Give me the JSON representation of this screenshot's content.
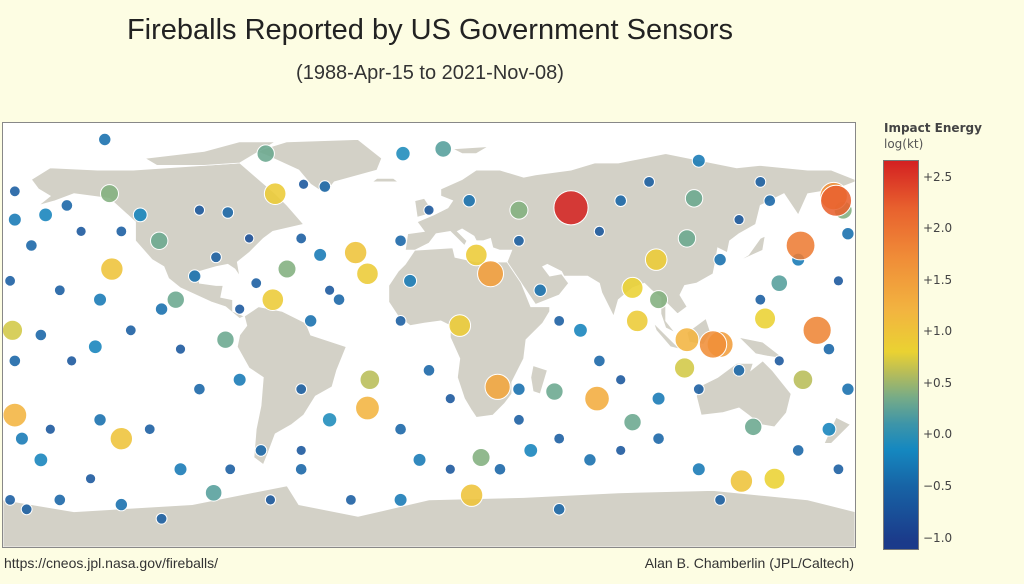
{
  "title": "Fireballs Reported by US Government Sensors",
  "subtitle": "(1988-Apr-15 to 2021-Nov-08)",
  "footer": {
    "source": "https://cneos.jpl.nasa.gov/fireballs/",
    "credit": "Alan B. Chamberlin (JPL/Caltech)"
  },
  "colors": {
    "background": "#fdfde3",
    "land": "#d3d1c7",
    "ocean": "#ffffff"
  },
  "chart_data": {
    "type": "scatter",
    "projection": "equirectangular",
    "x": "longitude",
    "y": "latitude",
    "colorbar": {
      "title": "Impact Energy",
      "unit": "log(kt)",
      "range": [
        -1.12,
        2.66
      ],
      "ticks": [
        {
          "v": 2.5,
          "label": "+2.5"
        },
        {
          "v": 2.0,
          "label": "+2.0"
        },
        {
          "v": 1.5,
          "label": "+1.5"
        },
        {
          "v": 1.0,
          "label": "+1.0"
        },
        {
          "v": 0.5,
          "label": "+0.5"
        },
        {
          "v": 0.0,
          "label": "+0.0"
        },
        {
          "v": -0.5,
          "label": "−0.5"
        },
        {
          "v": -1.0,
          "label": "−1.0"
        }
      ],
      "colorscale": [
        [
          -1.05,
          "#1b3a8a"
        ],
        [
          -0.5,
          "#1764a6"
        ],
        [
          -0.15,
          "#1588c0"
        ],
        [
          0.1,
          "#3e95a8"
        ],
        [
          0.35,
          "#75ab88"
        ],
        [
          0.6,
          "#b8bd58"
        ],
        [
          0.8,
          "#ead232"
        ],
        [
          1.2,
          "#f2b440"
        ],
        [
          1.7,
          "#f08e38"
        ],
        [
          2.2,
          "#e8612e"
        ],
        [
          2.65,
          "#d42222"
        ]
      ]
    },
    "points": [
      [
        60,
        54,
        2.64
      ],
      [
        172,
        57,
        2.2
      ],
      [
        171,
        59,
        1.7
      ],
      [
        157,
        38,
        1.9
      ],
      [
        164,
        2,
        1.8
      ],
      [
        120,
        -4,
        1.7
      ],
      [
        123,
        -4,
        1.5
      ],
      [
        109,
        -2,
        1.2
      ],
      [
        26,
        26,
        1.5
      ],
      [
        29,
        -22,
        1.4
      ],
      [
        71,
        -27,
        1.3
      ],
      [
        -26,
        -31,
        1.2
      ],
      [
        -175,
        -34,
        1.2
      ],
      [
        -130,
        -44,
        1.0
      ],
      [
        -134,
        28,
        1.0
      ],
      [
        18,
        -68,
        1.0
      ],
      [
        -65,
        60,
        0.9
      ],
      [
        -31,
        35,
        1.0
      ],
      [
        -26,
        26,
        0.9
      ],
      [
        -66,
        15,
        0.9
      ],
      [
        20,
        34,
        0.9
      ],
      [
        96,
        32,
        0.9
      ],
      [
        86,
        20,
        0.8
      ],
      [
        88,
        6,
        0.9
      ],
      [
        13,
        4,
        0.9
      ],
      [
        132,
        -62,
        1.0
      ],
      [
        146,
        -61,
        0.8
      ],
      [
        142,
        7,
        0.8
      ],
      [
        108,
        -14,
        0.7
      ],
      [
        158,
        -19,
        0.6
      ],
      [
        -25,
        -19,
        0.6
      ],
      [
        -176,
        2,
        0.7
      ],
      [
        38,
        53,
        0.4
      ],
      [
        -135,
        60,
        0.4
      ],
      [
        -69,
        77,
        0.3
      ],
      [
        6,
        79,
        0.2
      ],
      [
        -114,
        40,
        0.3
      ],
      [
        -60,
        28,
        0.4
      ],
      [
        -107,
        15,
        0.3
      ],
      [
        112,
        58,
        0.3
      ],
      [
        109,
        41,
        0.3
      ],
      [
        97,
        15,
        0.4
      ],
      [
        148,
        22,
        0.2
      ],
      [
        53,
        -24,
        0.3
      ],
      [
        86,
        -37,
        0.3
      ],
      [
        137,
        -39,
        0.3
      ],
      [
        -86,
        -2,
        0.3
      ],
      [
        22,
        -52,
        0.4
      ],
      [
        -91,
        -67,
        0.2
      ],
      [
        175,
        53,
        0.4
      ],
      [
        -137,
        83,
        -0.4
      ],
      [
        -11,
        77,
        -0.1
      ],
      [
        -44,
        63,
        -0.5
      ],
      [
        -53,
        64,
        -0.7
      ],
      [
        -175,
        61,
        -0.6
      ],
      [
        -162,
        51,
        -0.2
      ],
      [
        -153,
        55,
        -0.5
      ],
      [
        -175,
        49,
        -0.3
      ],
      [
        -147,
        44,
        -0.7
      ],
      [
        -168,
        38,
        -0.5
      ],
      [
        -130,
        44,
        -0.6
      ],
      [
        -122,
        51,
        -0.2
      ],
      [
        -97,
        53,
        -0.7
      ],
      [
        -85,
        52,
        -0.5
      ],
      [
        -90,
        33,
        -0.6
      ],
      [
        -99,
        25,
        -0.4
      ],
      [
        -76,
        41,
        -0.8
      ],
      [
        -54,
        41,
        -0.6
      ],
      [
        -46,
        34,
        -0.3
      ],
      [
        -42,
        19,
        -0.7
      ],
      [
        -38,
        15,
        -0.5
      ],
      [
        -73,
        22,
        -0.6
      ],
      [
        -50,
        6,
        -0.4
      ],
      [
        -80,
        11,
        -0.7
      ],
      [
        -139,
        15,
        -0.3
      ],
      [
        -156,
        19,
        -0.6
      ],
      [
        -164,
        0,
        -0.5
      ],
      [
        -151,
        -11,
        -0.7
      ],
      [
        -141,
        -5,
        -0.2
      ],
      [
        -126,
        2,
        -0.6
      ],
      [
        -113,
        11,
        -0.4
      ],
      [
        -105,
        -6,
        -0.7
      ],
      [
        -97,
        -23,
        -0.5
      ],
      [
        -80,
        -19,
        -0.3
      ],
      [
        -54,
        -23,
        -0.6
      ],
      [
        -42,
        -36,
        -0.1
      ],
      [
        -54,
        -49,
        -0.7
      ],
      [
        -71,
        -49,
        -0.5
      ],
      [
        -84,
        -57,
        -0.6
      ],
      [
        -105,
        -57,
        -0.3
      ],
      [
        -118,
        -40,
        -0.6
      ],
      [
        -139,
        -36,
        -0.4
      ],
      [
        -160,
        -40,
        -0.7
      ],
      [
        -164,
        -53,
        -0.2
      ],
      [
        -170,
        -74,
        -0.6
      ],
      [
        -156,
        -70,
        -0.5
      ],
      [
        -143,
        -61,
        -0.7
      ],
      [
        -130,
        -72,
        -0.4
      ],
      [
        -113,
        -78,
        -0.6
      ],
      [
        -12,
        -40,
        -0.5
      ],
      [
        -4,
        -53,
        -0.3
      ],
      [
        9,
        -57,
        -0.7
      ],
      [
        30,
        -57,
        -0.5
      ],
      [
        43,
        -49,
        -0.2
      ],
      [
        55,
        -44,
        -0.6
      ],
      [
        68,
        -53,
        -0.4
      ],
      [
        81,
        -49,
        -0.7
      ],
      [
        97,
        -44,
        -0.5
      ],
      [
        114,
        -57,
        -0.3
      ],
      [
        123,
        -70,
        -0.6
      ],
      [
        156,
        -49,
        -0.5
      ],
      [
        169,
        -40,
        -0.2
      ],
      [
        173,
        -57,
        -0.6
      ],
      [
        177,
        -23,
        -0.4
      ],
      [
        148,
        -11,
        -0.7
      ],
      [
        131,
        -15,
        -0.5
      ],
      [
        114,
        -23,
        -0.6
      ],
      [
        97,
        -27,
        -0.3
      ],
      [
        81,
        -19,
        -0.7
      ],
      [
        72,
        -11,
        -0.5
      ],
      [
        64,
        2,
        -0.2
      ],
      [
        55,
        6,
        -0.6
      ],
      [
        47,
        19,
        -0.4
      ],
      [
        72,
        44,
        -0.7
      ],
      [
        81,
        57,
        -0.5
      ],
      [
        93,
        65,
        -0.6
      ],
      [
        114,
        74,
        -0.3
      ],
      [
        140,
        65,
        -0.6
      ],
      [
        144,
        57,
        -0.5
      ],
      [
        131,
        49,
        -0.7
      ],
      [
        123,
        32,
        -0.4
      ],
      [
        140,
        15,
        -0.6
      ],
      [
        156,
        32,
        -0.3
      ],
      [
        173,
        23,
        -0.7
      ],
      [
        169,
        -6,
        -0.5
      ],
      [
        38,
        40,
        -0.6
      ],
      [
        17,
        57,
        -0.4
      ],
      [
        0,
        53,
        -0.7
      ],
      [
        -12,
        40,
        -0.5
      ],
      [
        -8,
        23,
        -0.3
      ],
      [
        -12,
        6,
        -0.6
      ],
      [
        0,
        -15,
        -0.5
      ],
      [
        9,
        -27,
        -0.7
      ],
      [
        38,
        -23,
        -0.4
      ],
      [
        38,
        -36,
        -0.6
      ],
      [
        55,
        -74,
        -0.5
      ],
      [
        -12,
        -70,
        -0.3
      ],
      [
        -33,
        -70,
        -0.6
      ],
      [
        -54,
        -57,
        -0.5
      ],
      [
        -67,
        -70,
        -0.7
      ],
      [
        177,
        43,
        -0.4
      ],
      [
        -177,
        23,
        -0.6
      ],
      [
        -175,
        -11,
        -0.5
      ],
      [
        -172,
        -44,
        -0.3
      ],
      [
        -177,
        -70,
        -0.6
      ]
    ]
  }
}
